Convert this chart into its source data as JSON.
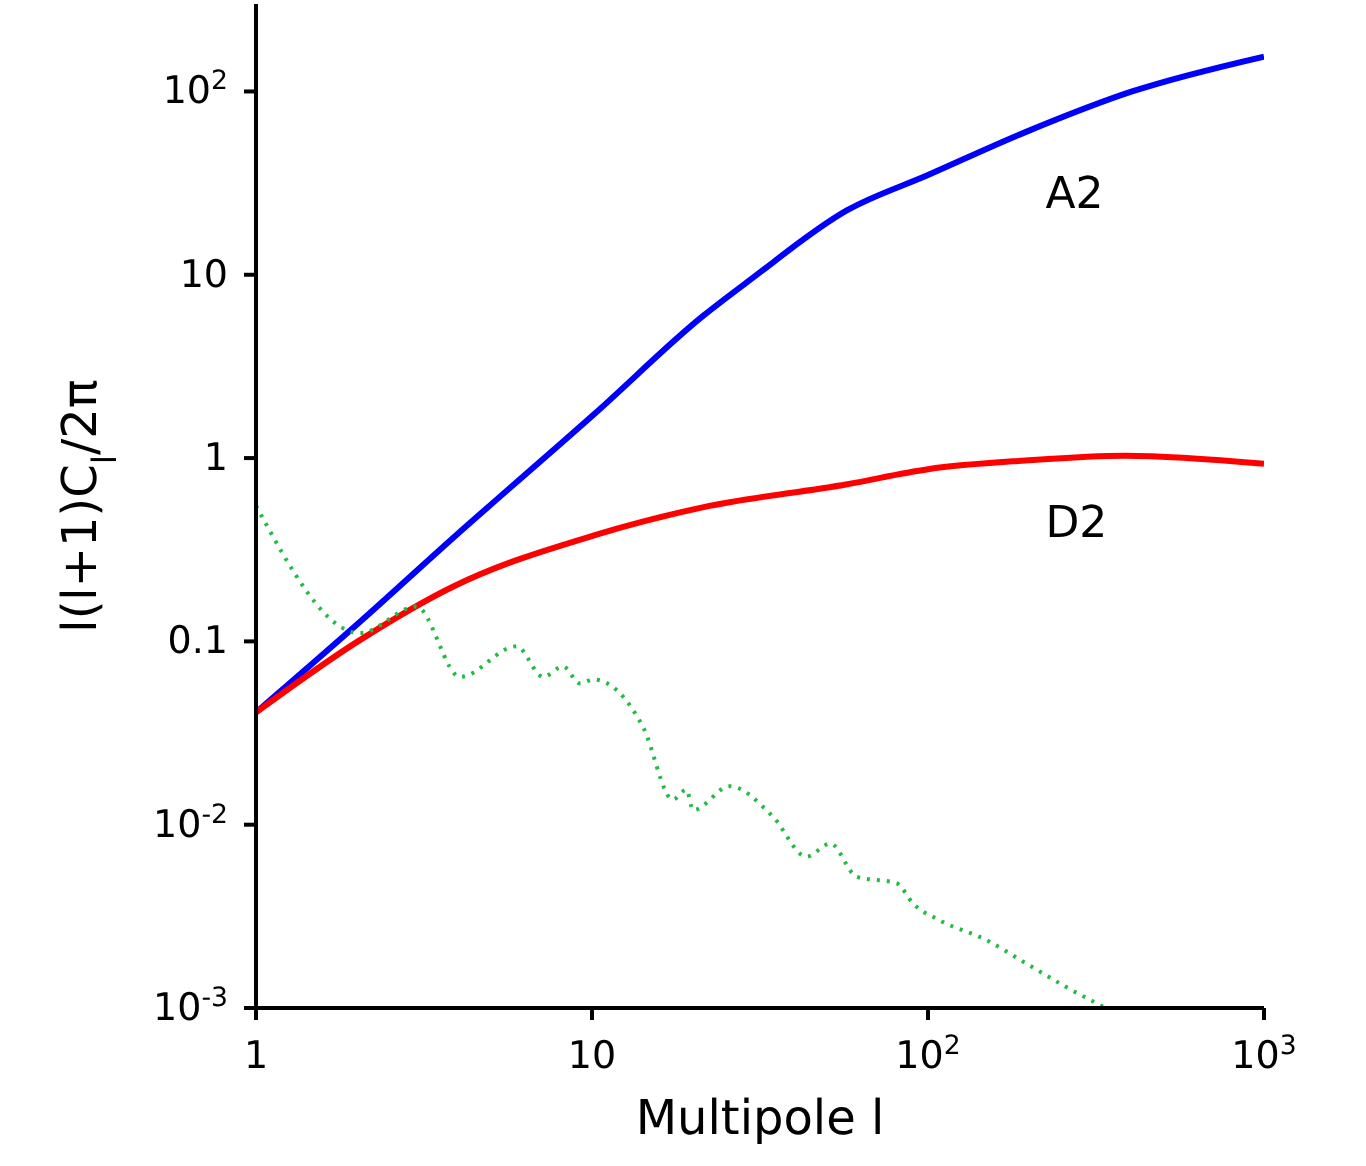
{
  "chart_data": {
    "type": "line",
    "xlabel": "Multipole l",
    "ylabel": "l(l+1)C$_{l}$/2π",
    "log": "xy",
    "marker": "none",
    "xlim": [
      1,
      1000
    ],
    "ylim": [
      0.001,
      300
    ],
    "xticks": [
      1,
      10,
      {
        "value": 100,
        "label": "10$^{2}$"
      },
      {
        "value": 1000,
        "label": "10$^{3}$"
      }
    ],
    "yticks": [
      {
        "value": 0.001,
        "label": "10$^{-3}$"
      },
      {
        "value": 0.01,
        "label": "10$^{-2}$"
      },
      0.1,
      1,
      10,
      {
        "value": 100,
        "label": "10$^{2}$"
      }
    ],
    "series": [
      {
        "name": "A2",
        "color": "#0000ff",
        "line_style": "solid",
        "x": [
          1,
          2.06,
          3.88,
          10.2,
          21.5,
          29.6,
          57.5,
          100,
          195,
          405,
          1000
        ],
        "values": [
          0.041,
          0.13,
          0.37,
          1.75,
          6.0,
          9.4,
          22.5,
          35,
          60,
          100,
          155
        ]
      },
      {
        "name": "D2",
        "color": "#ff0000",
        "line_style": "solid",
        "x": [
          1,
          2.01,
          3.88,
          10.2,
          21.5,
          57.5,
          100,
          195,
          387,
          1000
        ],
        "values": [
          0.041,
          0.1,
          0.2,
          0.38,
          0.54,
          0.72,
          0.87,
          0.97,
          1.03,
          0.93
        ]
      },
      {
        "color": "#22bb44",
        "line_style": "dotted",
        "x": [
          1,
          2.04,
          3.0,
          4.05,
          5.96,
          7.16,
          8.2,
          9.2,
          10.1,
          14.2,
          17.4,
          19.1,
          20,
          25.7,
          34.5,
          43.5,
          51.2,
          61.3,
          80.6,
          90.4,
          108.7,
          149,
          196,
          258,
          338
        ],
        "values": [
          0.55,
          0.111,
          0.155,
          0.064,
          0.094,
          0.064,
          0.073,
          0.059,
          0.062,
          0.034,
          0.0137,
          0.0155,
          0.012,
          0.0162,
          0.0111,
          0.0067,
          0.0079,
          0.0052,
          0.0048,
          0.0037,
          0.003,
          0.00235,
          0.00175,
          0.0013,
          0.001
        ]
      }
    ]
  }
}
